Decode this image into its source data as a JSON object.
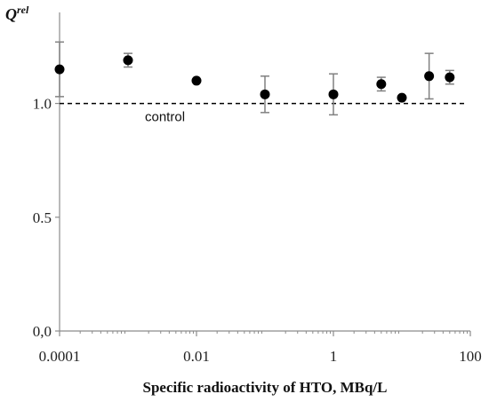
{
  "chart_data": {
    "type": "scatter",
    "title": "",
    "ylabel_main": "Q",
    "ylabel_sup": "rel",
    "xlabel": "Specific radioactivity of HTO, MBq/L",
    "x_scale": "log",
    "xlim": [
      0.0001,
      100
    ],
    "ylim": [
      0,
      1.4
    ],
    "x_ticks": [
      0.0001,
      0.01,
      1,
      100
    ],
    "x_tick_labels": [
      "0.0001",
      "0.01",
      "1",
      "100"
    ],
    "y_ticks": [
      0,
      0.5,
      1.0
    ],
    "y_tick_labels": [
      "0,0",
      "0.5",
      "1.0"
    ],
    "grid": false,
    "legend": "none",
    "reference_line": {
      "y": 1.0,
      "style": "dashed",
      "label": "control"
    },
    "points": [
      {
        "x": 0.0001,
        "y": 1.15,
        "err": 0.12
      },
      {
        "x": 0.001,
        "y": 1.19,
        "err": 0.03
      },
      {
        "x": 0.01,
        "y": 1.1,
        "err": 0.0
      },
      {
        "x": 0.1,
        "y": 1.04,
        "err": 0.08
      },
      {
        "x": 1,
        "y": 1.04,
        "err": 0.09
      },
      {
        "x": 5,
        "y": 1.085,
        "err": 0.03
      },
      {
        "x": 10,
        "y": 1.025,
        "err": 0.0
      },
      {
        "x": 25,
        "y": 1.12,
        "err": 0.1
      },
      {
        "x": 50,
        "y": 1.115,
        "err": 0.03
      }
    ],
    "colors": {
      "marker": "#000000",
      "errorbar": "#808080",
      "axis": "#8c8c8c",
      "reference": "#000000"
    }
  }
}
